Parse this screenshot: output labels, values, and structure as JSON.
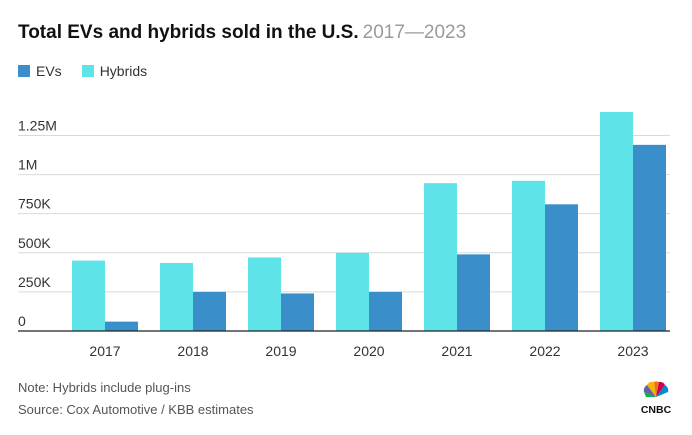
{
  "title": "Total EVs and hybrids sold in the U.S.",
  "subtitle": "2017—2023",
  "legend": {
    "evs_label": "EVs",
    "hybrids_label": "Hybrids"
  },
  "colors": {
    "evs": "#3a8fca",
    "hybrids": "#5ee3e9",
    "grid": "#d9d9d9",
    "axis": "#222222"
  },
  "notes": {
    "note": "Note: Hybrids include plug-ins",
    "source": "Source: Cox Automotive / KBB estimates"
  },
  "logo": {
    "text": "CNBC",
    "icon": "cnbc-peacock-logo"
  },
  "chart_data": {
    "type": "bar",
    "categories": [
      "2017",
      "2018",
      "2019",
      "2020",
      "2021",
      "2022",
      "2023"
    ],
    "series": [
      {
        "name": "Hybrids",
        "values": [
          450000,
          435000,
          470000,
          500000,
          945000,
          960000,
          1400000
        ]
      },
      {
        "name": "EVs",
        "values": [
          60000,
          250000,
          240000,
          250000,
          490000,
          810000,
          1190000
        ]
      }
    ],
    "yticks": [
      0,
      250000,
      500000,
      750000,
      1000000,
      1250000
    ],
    "ytick_labels": [
      "0",
      "250K",
      "500K",
      "750K",
      "1M",
      "1.25M"
    ],
    "ylim": [
      0,
      1400000
    ],
    "xlabel": "",
    "ylabel": "",
    "grid": true,
    "legend_position": "top-left"
  }
}
